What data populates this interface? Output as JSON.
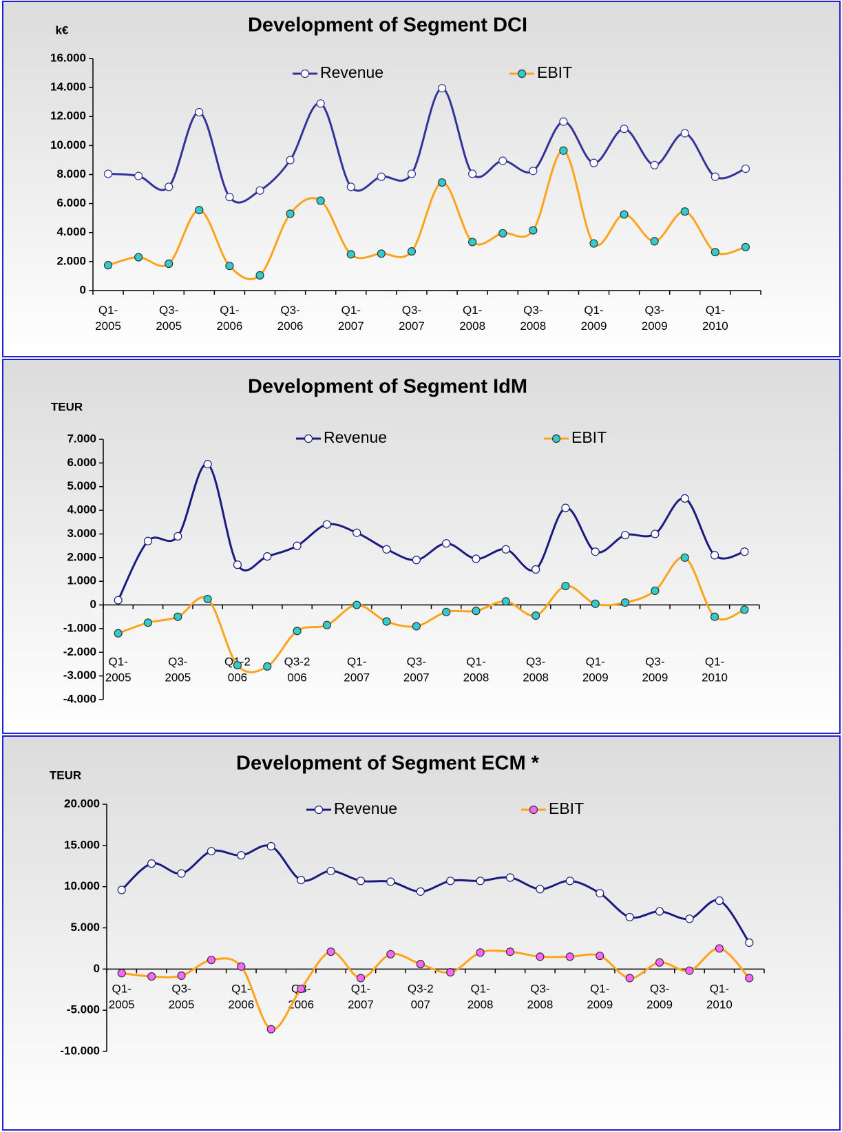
{
  "chart_data": [
    {
      "type": "line",
      "title": "Development of Segment DCI",
      "unit_label": "k€",
      "legend": "top",
      "categories": [
        "Q1-\n2005",
        null,
        "Q3-\n2005",
        null,
        "Q1-\n2006",
        null,
        "Q3-\n2006",
        null,
        "Q1-\n2007",
        null,
        "Q3-\n2007",
        null,
        "Q1-\n2008",
        null,
        "Q3-\n2008",
        null,
        "Q1-\n2009",
        null,
        "Q3-\n2009",
        null,
        "Q1-\n2010",
        null
      ],
      "series": [
        {
          "name": "Revenue",
          "color": "#333399",
          "marker_color": "#ffffff",
          "values": [
            8050,
            7900,
            7150,
            12300,
            6450,
            6900,
            9000,
            12900,
            7150,
            7850,
            8050,
            13950,
            8050,
            8950,
            8250,
            11650,
            8800,
            11150,
            8650,
            10850,
            7850,
            8400
          ]
        },
        {
          "name": "EBIT",
          "color": "#ffa31a",
          "marker_color": "#33cccc",
          "values": [
            1750,
            2300,
            1850,
            5550,
            1700,
            1050,
            5300,
            6200,
            2500,
            2550,
            2700,
            7450,
            3350,
            3950,
            4150,
            9650,
            3250,
            5250,
            3400,
            5450,
            2650,
            3000
          ]
        }
      ],
      "ylim": [
        0,
        16000
      ],
      "yticks": [
        0,
        {
          "value": 2000,
          "label": "2.000"
        },
        {
          "value": 4000,
          "label": "4.000"
        },
        {
          "value": 6000,
          "label": "6.000"
        },
        {
          "value": 8000,
          "label": "8.000"
        },
        {
          "value": 10000,
          "label": "10.000"
        },
        {
          "value": 12000,
          "label": "12.000"
        },
        {
          "value": 14000,
          "label": "14.000"
        },
        {
          "value": 16000,
          "label": "16.000"
        }
      ]
    },
    {
      "type": "line",
      "title": "Development of Segment IdM",
      "unit_label": "TEUR",
      "legend": "top",
      "categories": [
        "Q1-\n2005",
        null,
        "Q3-\n2005",
        null,
        "Q1-2\n006",
        null,
        "Q3-2\n006",
        null,
        "Q1-\n2007",
        null,
        "Q3-\n2007",
        null,
        "Q1-\n2008",
        null,
        "Q3-\n2008",
        null,
        "Q1-\n2009",
        null,
        "Q3-\n2009",
        null,
        "Q1-\n2010",
        null
      ],
      "series": [
        {
          "name": "Revenue",
          "color": "#1a1a80",
          "marker_color": "#ffffff",
          "values": [
            200,
            2700,
            2900,
            5950,
            1700,
            2050,
            2500,
            3400,
            3050,
            2350,
            1900,
            2600,
            1950,
            2350,
            1500,
            4100,
            2250,
            2950,
            3000,
            4500,
            2100,
            2250
          ]
        },
        {
          "name": "EBIT",
          "color": "#ffa31a",
          "marker_color": "#33cccc",
          "values": [
            -1200,
            -750,
            -500,
            250,
            -2550,
            -2600,
            -1100,
            -850,
            0,
            -700,
            -900,
            -300,
            -250,
            150,
            -450,
            800,
            50,
            100,
            600,
            2000,
            -500,
            -200
          ]
        }
      ],
      "ylim": [
        -4000,
        7000
      ],
      "yticks": [
        {
          "value": -4000,
          "label": "-4.000"
        },
        {
          "value": -3000,
          "label": "-3.000"
        },
        {
          "value": -2000,
          "label": "-2.000"
        },
        {
          "value": -1000,
          "label": "-1.000"
        },
        0,
        {
          "value": 1000,
          "label": "1.000"
        },
        {
          "value": 2000,
          "label": "2.000"
        },
        {
          "value": 3000,
          "label": "3.000"
        },
        {
          "value": 4000,
          "label": "4.000"
        },
        {
          "value": 5000,
          "label": "5.000"
        },
        {
          "value": 6000,
          "label": "6.000"
        },
        {
          "value": 7000,
          "label": "7.000"
        }
      ]
    },
    {
      "type": "line",
      "title": "Development of Segment ECM *",
      "unit_label": "TEUR",
      "legend": "top",
      "categories": [
        "Q1-\n2005",
        null,
        "Q3-\n2005",
        null,
        "Q1-\n2006",
        null,
        "Q3-\n2006",
        null,
        "Q1-\n2007",
        null,
        "Q3-2\n007",
        null,
        "Q1-\n2008",
        null,
        "Q3-\n2008",
        null,
        "Q1-\n2009",
        null,
        "Q3-\n2009",
        null,
        "Q1-\n2010",
        null
      ],
      "series": [
        {
          "name": "Revenue",
          "color": "#1a1a80",
          "marker_color": "#ffffff",
          "values": [
            9600,
            12800,
            11600,
            14300,
            13800,
            14900,
            10800,
            11900,
            10700,
            10600,
            9400,
            10700,
            10700,
            11100,
            9700,
            10700,
            9200,
            6300,
            7000,
            6100,
            8300,
            3200
          ]
        },
        {
          "name": "EBIT",
          "color": "#ffa31a",
          "marker_color": "#ff66ff",
          "values": [
            -500,
            -900,
            -800,
            1100,
            300,
            -7300,
            -2400,
            2100,
            -1100,
            1800,
            600,
            -400,
            2000,
            2100,
            1500,
            1500,
            1600,
            -1100,
            800,
            -200,
            2500,
            -1100
          ]
        }
      ],
      "ylim": [
        -10000,
        20000
      ],
      "yticks": [
        {
          "value": -10000,
          "label": "-10.000"
        },
        {
          "value": -5000,
          "label": "-5.000"
        },
        0,
        {
          "value": 5000,
          "label": "5.000"
        },
        {
          "value": 10000,
          "label": "10.000"
        },
        {
          "value": 15000,
          "label": "15.000"
        },
        {
          "value": 20000,
          "label": "20.000"
        }
      ]
    }
  ]
}
